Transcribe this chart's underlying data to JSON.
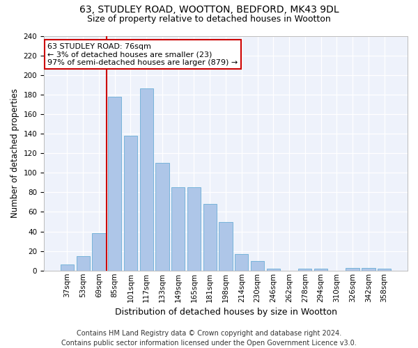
{
  "title1": "63, STUDLEY ROAD, WOOTTON, BEDFORD, MK43 9DL",
  "title2": "Size of property relative to detached houses in Wootton",
  "xlabel": "Distribution of detached houses by size in Wootton",
  "ylabel": "Number of detached properties",
  "categories": [
    "37sqm",
    "53sqm",
    "69sqm",
    "85sqm",
    "101sqm",
    "117sqm",
    "133sqm",
    "149sqm",
    "165sqm",
    "181sqm",
    "198sqm",
    "214sqm",
    "230sqm",
    "246sqm",
    "262sqm",
    "278sqm",
    "294sqm",
    "310sqm",
    "326sqm",
    "342sqm",
    "358sqm"
  ],
  "values": [
    6,
    15,
    38,
    178,
    138,
    186,
    110,
    85,
    85,
    68,
    50,
    17,
    10,
    2,
    0,
    2,
    2,
    0,
    3,
    3,
    2
  ],
  "bar_color": "#aec6e8",
  "bar_edge_color": "#6aaed6",
  "annotation_text_line1": "63 STUDLEY ROAD: 76sqm",
  "annotation_text_line2": "← 3% of detached houses are smaller (23)",
  "annotation_text_line3": "97% of semi-detached houses are larger (879) →",
  "annotation_box_facecolor": "#ffffff",
  "annotation_box_edgecolor": "#cc0000",
  "vline_color": "#cc0000",
  "vline_x_index": 2.5,
  "footer1": "Contains HM Land Registry data © Crown copyright and database right 2024.",
  "footer2": "Contains public sector information licensed under the Open Government Licence v3.0.",
  "ylim": [
    0,
    240
  ],
  "yticks": [
    0,
    20,
    40,
    60,
    80,
    100,
    120,
    140,
    160,
    180,
    200,
    220,
    240
  ],
  "background_color": "#eef2fb",
  "grid_color": "#ffffff",
  "title1_fontsize": 10,
  "title2_fontsize": 9,
  "xlabel_fontsize": 9,
  "ylabel_fontsize": 8.5,
  "tick_fontsize": 7.5,
  "annotation_fontsize": 8,
  "footer_fontsize": 7
}
